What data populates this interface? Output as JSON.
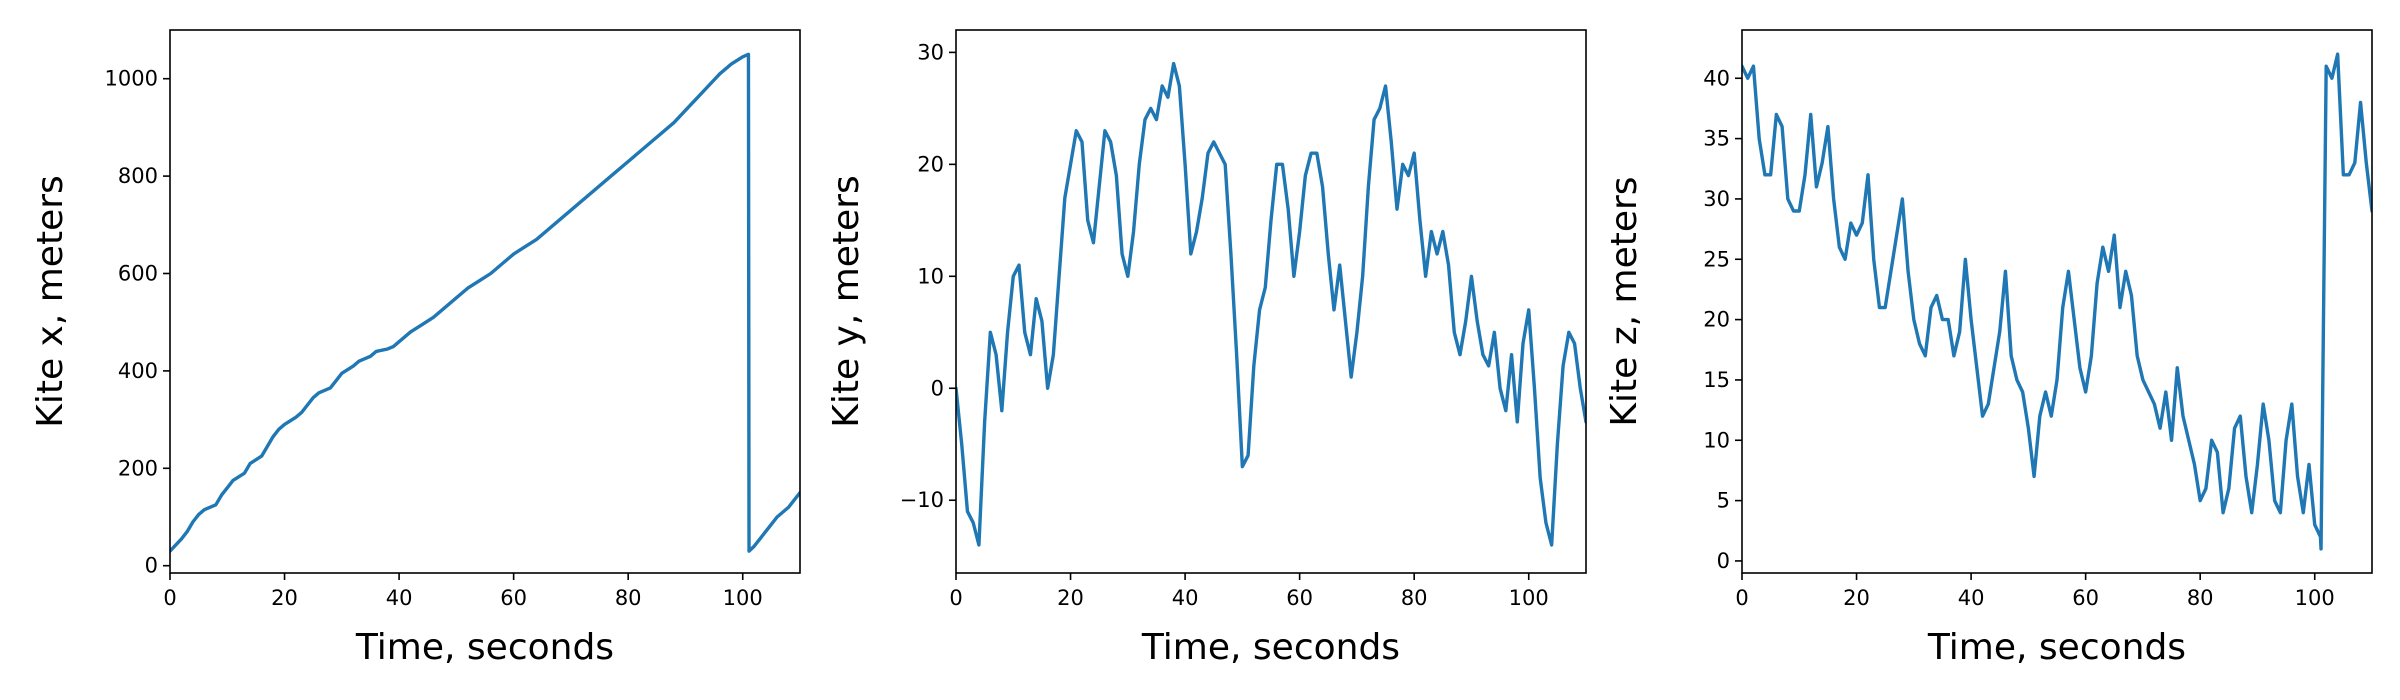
{
  "colors": {
    "series": "#1f77b4",
    "axes": "#000000",
    "background": "#ffffff"
  },
  "chart_data": [
    {
      "type": "line",
      "xlabel": "Time, seconds",
      "ylabel": "Kite x, meters",
      "xlim": [
        0,
        110
      ],
      "ylim": [
        -15,
        1100
      ],
      "xticks": [
        0,
        20,
        40,
        60,
        80,
        100
      ],
      "yticks": [
        0,
        200,
        400,
        600,
        800,
        1000
      ],
      "grid": false,
      "series": [
        {
          "x": [
            0,
            2,
            3,
            4,
            5,
            6,
            8,
            9,
            10,
            11,
            13,
            14,
            16,
            17,
            18,
            19,
            20,
            22,
            23,
            24,
            25,
            26,
            28,
            29,
            30,
            32,
            33,
            35,
            36,
            38,
            39,
            40,
            42,
            44,
            46,
            48,
            50,
            52,
            54,
            56,
            58,
            60,
            62,
            64,
            66,
            68,
            70,
            72,
            74,
            76,
            78,
            80,
            82,
            84,
            86,
            88,
            90,
            92,
            94,
            96,
            98,
            100,
            101,
            101.1,
            102,
            103,
            104,
            105,
            106,
            107,
            108,
            109,
            110
          ],
          "y": [
            30,
            55,
            70,
            90,
            105,
            115,
            125,
            145,
            160,
            175,
            190,
            210,
            225,
            245,
            265,
            280,
            290,
            305,
            315,
            330,
            345,
            355,
            365,
            380,
            395,
            410,
            420,
            430,
            440,
            445,
            450,
            460,
            480,
            495,
            510,
            530,
            550,
            570,
            585,
            600,
            620,
            640,
            655,
            670,
            690,
            710,
            730,
            750,
            770,
            790,
            810,
            830,
            850,
            870,
            890,
            910,
            935,
            960,
            985,
            1010,
            1030,
            1045,
            1050,
            30,
            40,
            55,
            70,
            85,
            100,
            110,
            120,
            135,
            150
          ]
        }
      ]
    },
    {
      "type": "line",
      "xlabel": "Time, seconds",
      "ylabel": "Kite y, meters",
      "xlim": [
        0,
        110
      ],
      "ylim": [
        -16.5,
        32
      ],
      "xticks": [
        0,
        20,
        40,
        60,
        80,
        100
      ],
      "yticks": [
        -10,
        0,
        10,
        20,
        30
      ],
      "grid": false,
      "series": [
        {
          "x": [
            0,
            1,
            2,
            3,
            4,
            5,
            6,
            7,
            8,
            9,
            10,
            11,
            12,
            13,
            14,
            15,
            16,
            17,
            18,
            19,
            20,
            21,
            22,
            23,
            24,
            25,
            26,
            27,
            28,
            29,
            30,
            31,
            32,
            33,
            34,
            35,
            36,
            37,
            38,
            39,
            40,
            41,
            42,
            43,
            44,
            45,
            46,
            47,
            48,
            49,
            50,
            51,
            52,
            53,
            54,
            55,
            56,
            57,
            58,
            59,
            60,
            61,
            62,
            63,
            64,
            65,
            66,
            67,
            68,
            69,
            70,
            71,
            72,
            73,
            74,
            75,
            76,
            77,
            78,
            79,
            80,
            81,
            82,
            83,
            84,
            85,
            86,
            87,
            88,
            89,
            90,
            91,
            92,
            93,
            94,
            95,
            96,
            97,
            98,
            99,
            100,
            101,
            102,
            103,
            104,
            105,
            106,
            107,
            108,
            109,
            110
          ],
          "y": [
            0,
            -5,
            -11,
            -12,
            -14,
            -3,
            5,
            3,
            -2,
            5,
            10,
            11,
            5,
            3,
            8,
            6,
            0,
            3,
            10,
            17,
            20,
            23,
            22,
            15,
            13,
            18,
            23,
            22,
            19,
            12,
            10,
            14,
            20,
            24,
            25,
            24,
            27,
            26,
            29,
            27,
            20,
            12,
            14,
            17,
            21,
            22,
            21,
            20,
            12,
            3,
            -7,
            -6,
            2,
            7,
            9,
            15,
            20,
            20,
            16,
            10,
            14,
            19,
            21,
            21,
            18,
            12,
            7,
            11,
            6,
            1,
            5,
            10,
            18,
            24,
            25,
            27,
            22,
            16,
            20,
            19,
            21,
            15,
            10,
            14,
            12,
            14,
            11,
            5,
            3,
            6,
            10,
            6,
            3,
            2,
            5,
            0,
            -2,
            3,
            -3,
            4,
            7,
            0,
            -8,
            -12,
            -14,
            -5,
            2,
            5,
            4,
            0,
            -3
          ]
        }
      ]
    },
    {
      "type": "line",
      "xlabel": "Time, seconds",
      "ylabel": "Kite z, meters",
      "xlim": [
        0,
        110
      ],
      "ylim": [
        -1,
        44
      ],
      "xticks": [
        0,
        20,
        40,
        60,
        80,
        100
      ],
      "yticks": [
        0,
        5,
        10,
        15,
        20,
        25,
        30,
        35,
        40
      ],
      "grid": false,
      "series": [
        {
          "x": [
            0,
            1,
            2,
            3,
            4,
            5,
            6,
            7,
            8,
            9,
            10,
            11,
            12,
            13,
            14,
            15,
            16,
            17,
            18,
            19,
            20,
            21,
            22,
            23,
            24,
            25,
            26,
            27,
            28,
            29,
            30,
            31,
            32,
            33,
            34,
            35,
            36,
            37,
            38,
            39,
            40,
            41,
            42,
            43,
            44,
            45,
            46,
            47,
            48,
            49,
            50,
            51,
            52,
            53,
            54,
            55,
            56,
            57,
            58,
            59,
            60,
            61,
            62,
            63,
            64,
            65,
            66,
            67,
            68,
            69,
            70,
            71,
            72,
            73,
            74,
            75,
            76,
            77,
            78,
            79,
            80,
            81,
            82,
            83,
            84,
            85,
            86,
            87,
            88,
            89,
            90,
            91,
            92,
            93,
            94,
            95,
            96,
            97,
            98,
            99,
            100,
            101,
            101.1,
            102,
            103,
            104,
            105,
            106,
            107,
            108,
            109,
            110
          ],
          "y": [
            41,
            40,
            41,
            35,
            32,
            32,
            37,
            36,
            30,
            29,
            29,
            32,
            37,
            31,
            33,
            36,
            30,
            26,
            25,
            28,
            27,
            28,
            32,
            25,
            21,
            21,
            24,
            27,
            30,
            24,
            20,
            18,
            17,
            21,
            22,
            20,
            20,
            17,
            19,
            25,
            20,
            16,
            12,
            13,
            16,
            19,
            24,
            17,
            15,
            14,
            11,
            7,
            12,
            14,
            12,
            15,
            21,
            24,
            20,
            16,
            14,
            17,
            23,
            26,
            24,
            27,
            21,
            24,
            22,
            17,
            15,
            14,
            13,
            11,
            14,
            10,
            16,
            12,
            10,
            8,
            5,
            6,
            10,
            9,
            4,
            6,
            11,
            12,
            7,
            4,
            8,
            13,
            10,
            5,
            4,
            10,
            13,
            7,
            4,
            8,
            3,
            2,
            1,
            41,
            40,
            42,
            32,
            32,
            33,
            38,
            33,
            29
          ]
        }
      ]
    }
  ]
}
